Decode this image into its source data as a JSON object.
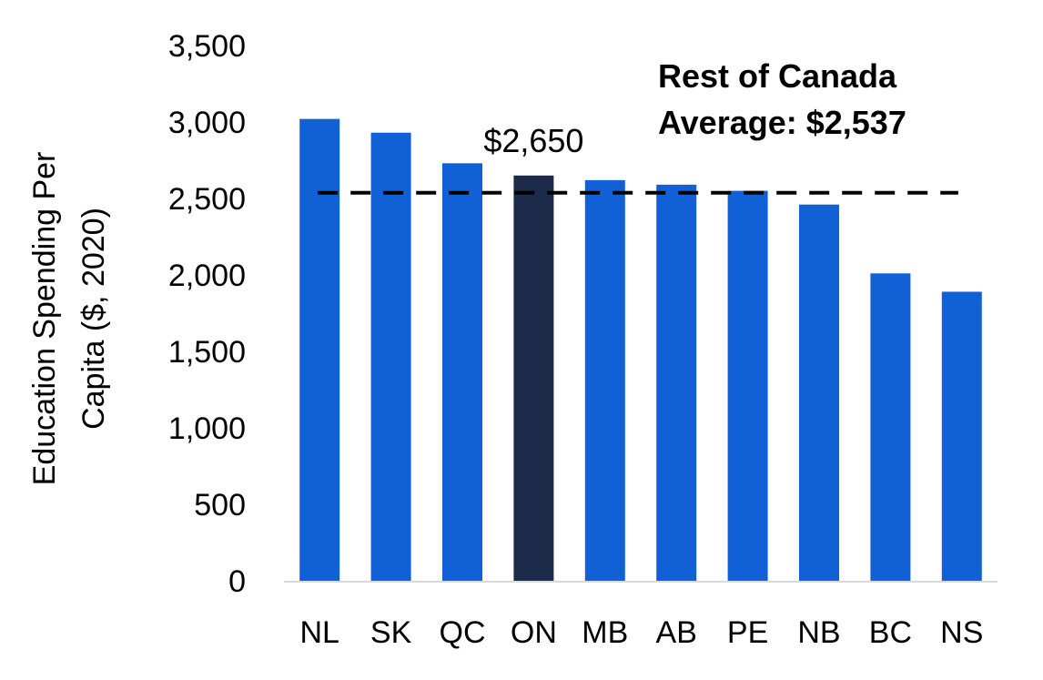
{
  "chart_data": {
    "type": "bar",
    "categories": [
      "NL",
      "SK",
      "QC",
      "ON",
      "MB",
      "AB",
      "PE",
      "NB",
      "BC",
      "NS"
    ],
    "values": [
      3020,
      2930,
      2730,
      2650,
      2620,
      2590,
      2550,
      2460,
      2010,
      1890
    ],
    "highlight_index": 3,
    "highlight_label": "$2,650",
    "ylabel_lines": [
      "Education Spending Per",
      "Capita ($, 2020)"
    ],
    "yticks": [
      "0",
      "500",
      "1,000",
      "1,500",
      "2,000",
      "2,500",
      "3,000",
      "3,500"
    ],
    "ylim": [
      0,
      3500
    ],
    "reference_line": {
      "value": 2537,
      "style": "dashed"
    },
    "annotation_lines": [
      "Rest of Canada",
      "Average: $2,537"
    ],
    "grid": false,
    "colors": {
      "bar": "#1260D6",
      "highlight": "#1D2B4A",
      "axis": "#D9D9D9",
      "reference": "#000000"
    }
  }
}
